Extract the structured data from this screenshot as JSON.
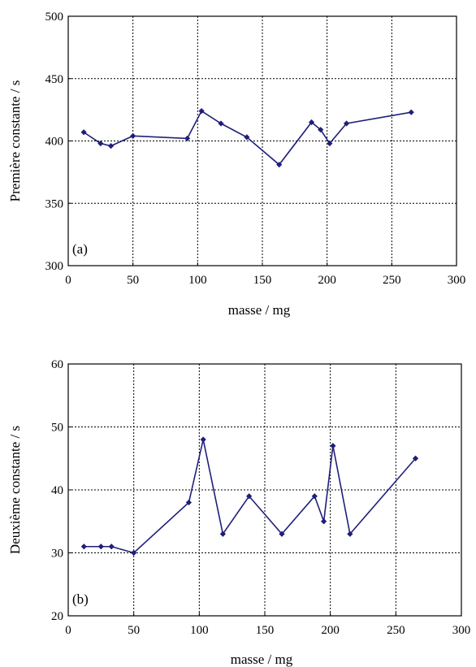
{
  "chart_data": [
    {
      "type": "line",
      "panel_label": "(a)",
      "xlabel": "masse / mg",
      "ylabel": "Première constante / s",
      "xlim": [
        0,
        300
      ],
      "ylim": [
        300,
        500
      ],
      "xticks": [
        0,
        50,
        100,
        150,
        200,
        250,
        300
      ],
      "yticks": [
        300,
        350,
        400,
        450,
        500
      ],
      "grid": true,
      "color": "#1f1f7a",
      "x": [
        12,
        25,
        33,
        50,
        92,
        103,
        118,
        138,
        163,
        188,
        195,
        202,
        215,
        265
      ],
      "y": [
        407,
        398,
        396,
        404,
        402,
        424,
        414,
        403,
        381,
        415,
        409,
        398,
        414,
        423
      ]
    },
    {
      "type": "line",
      "panel_label": "(b)",
      "xlabel": "masse / mg",
      "ylabel": "Deuxième constante / s",
      "xlim": [
        0,
        300
      ],
      "ylim": [
        20,
        60
      ],
      "xticks": [
        0,
        50,
        100,
        150,
        200,
        250,
        300
      ],
      "yticks": [
        20,
        30,
        40,
        50,
        60
      ],
      "grid": true,
      "color": "#1f1f7a",
      "x": [
        12,
        25,
        33,
        50,
        92,
        103,
        118,
        138,
        163,
        188,
        195,
        202,
        215,
        265
      ],
      "y": [
        31,
        31,
        31,
        30,
        38,
        48,
        33,
        39,
        33,
        39,
        35,
        47,
        33,
        45
      ]
    }
  ]
}
